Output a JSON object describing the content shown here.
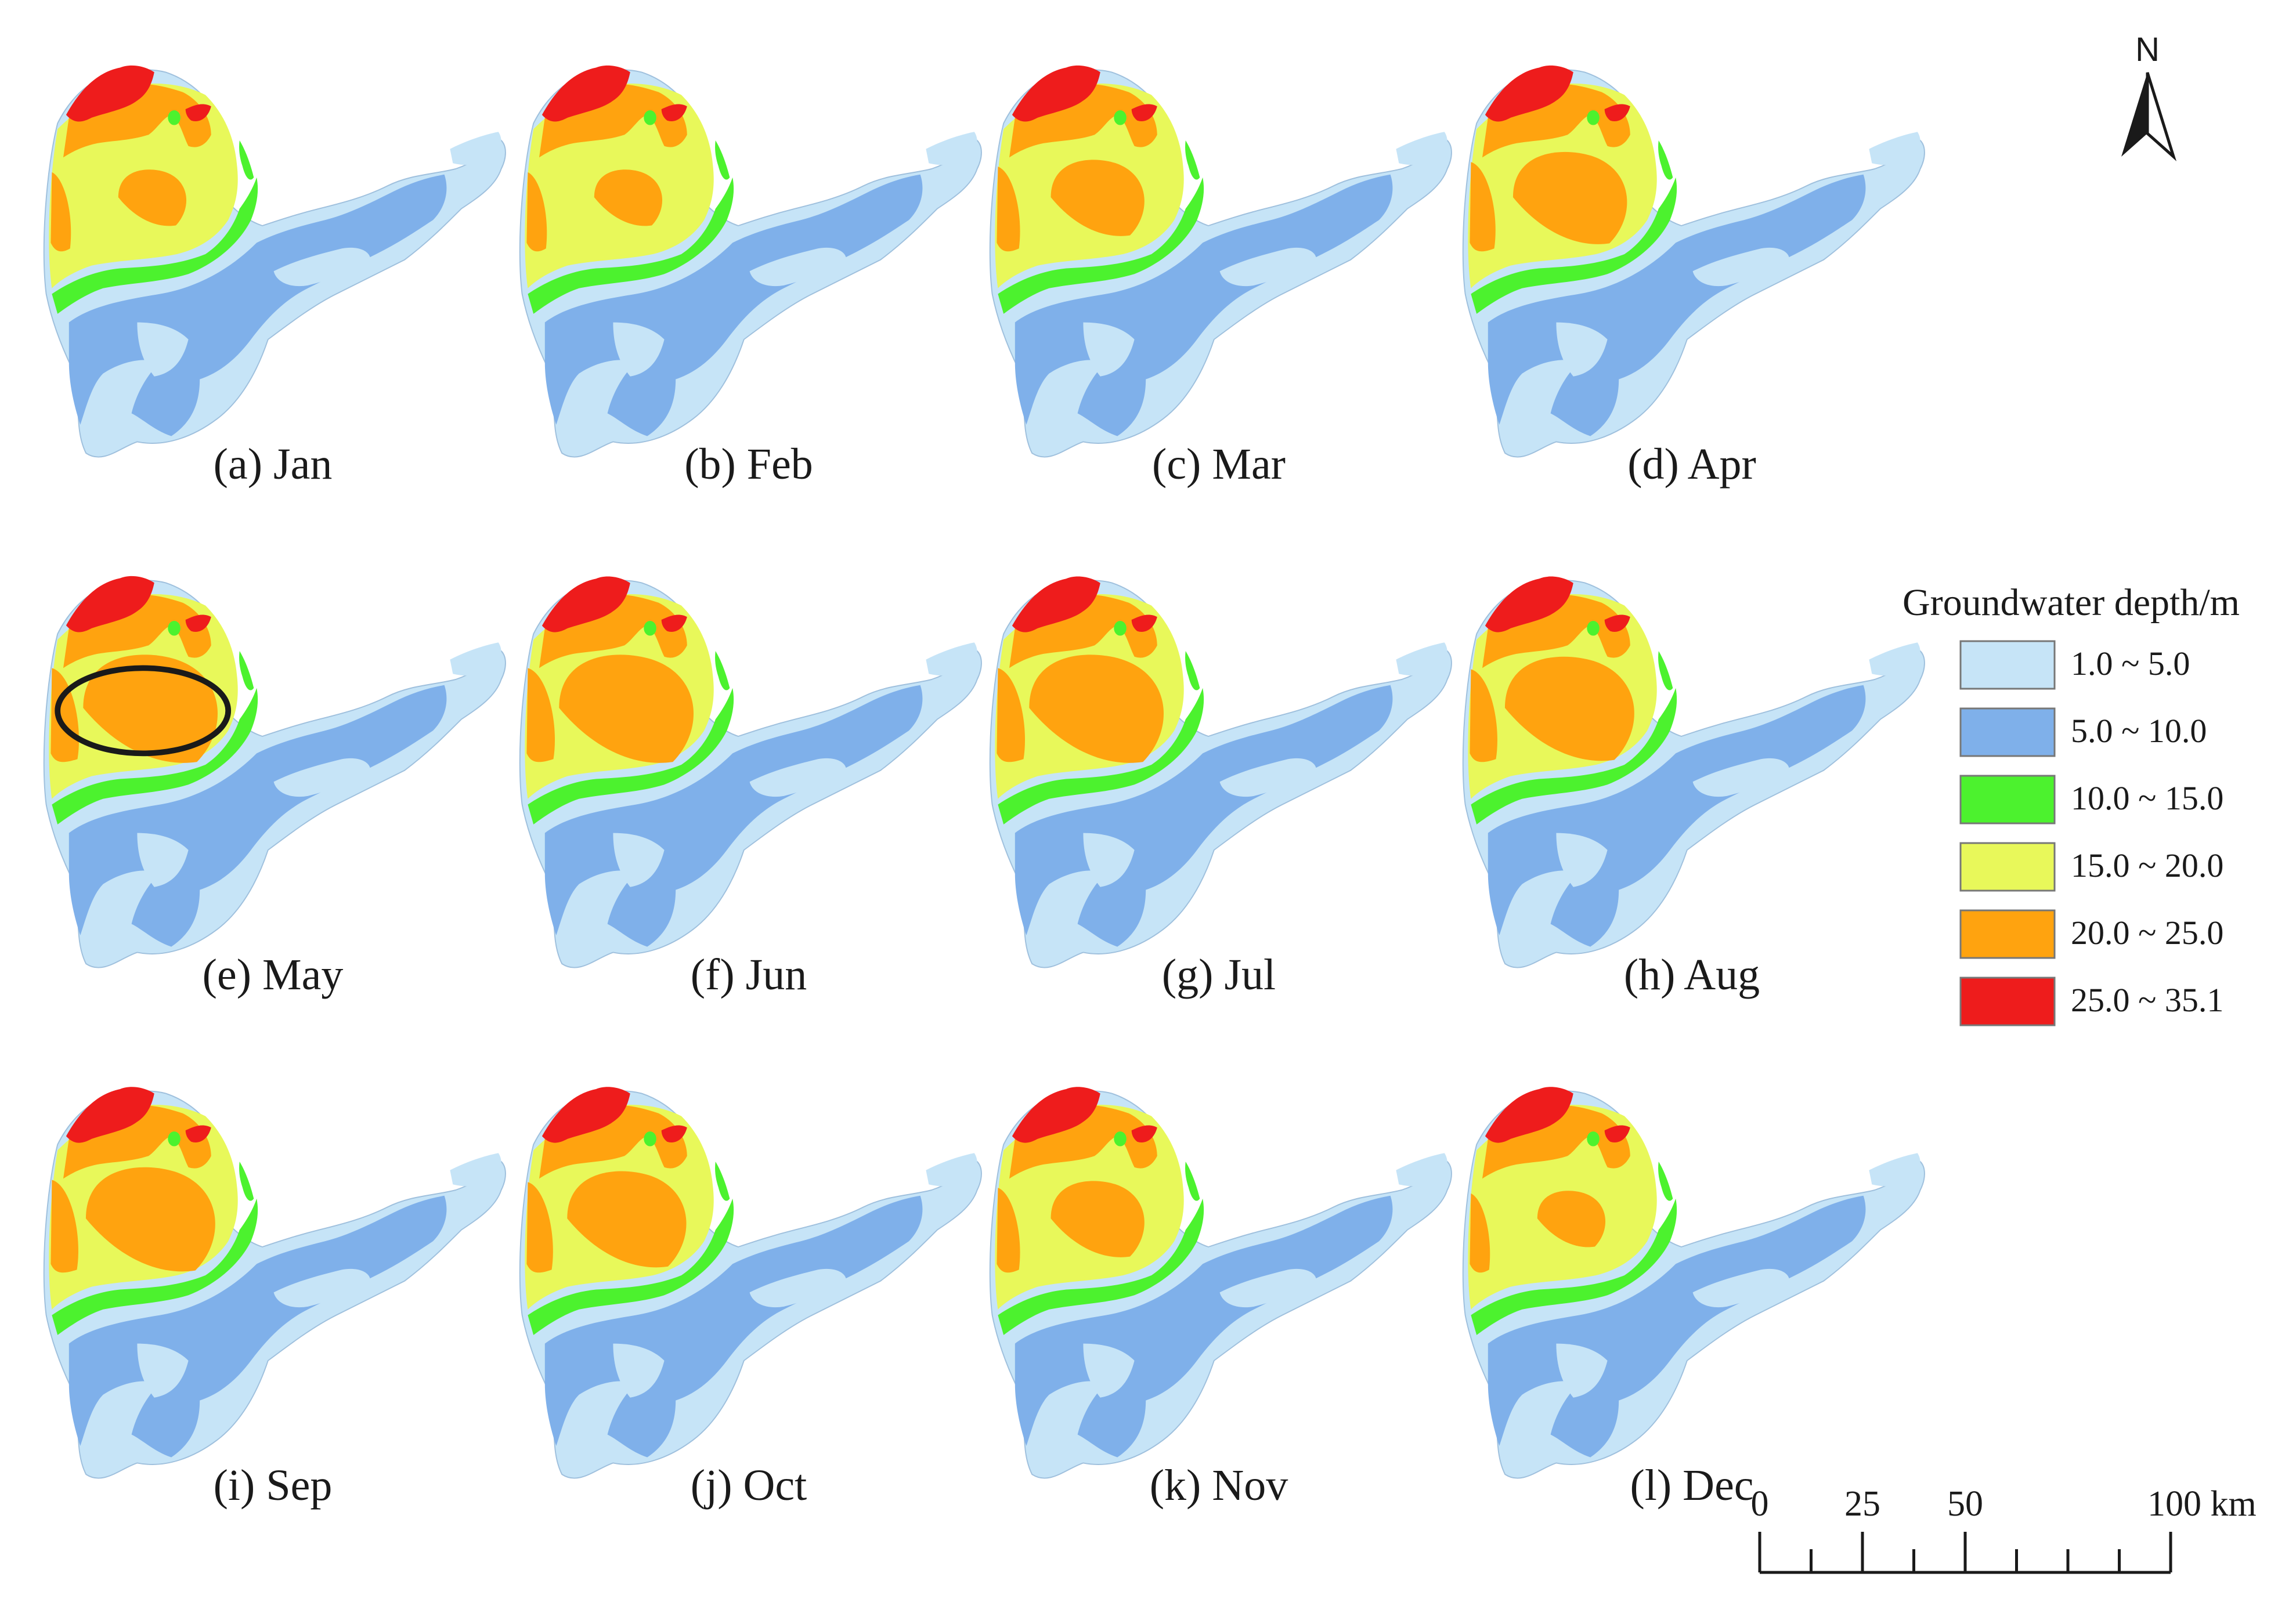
{
  "colors": {
    "class_1": "#c6e4f7",
    "class_2": "#7fb0ea",
    "class_3": "#4cf22e",
    "class_4": "#e8f85a",
    "class_5": "#ffa30f",
    "class_6": "#ee1c1c",
    "outline": "#8aa6c8",
    "ink": "#1a1a1a"
  },
  "north_arrow": {
    "label": "N"
  },
  "legend": {
    "title": "Groundwater depth/m",
    "classes": [
      {
        "label": "1.0 ~ 5.0",
        "color": "#c6e4f7"
      },
      {
        "label": "5.0 ~ 10.0",
        "color": "#7fb0ea"
      },
      {
        "label": "10.0 ~ 15.0",
        "color": "#4cf22e"
      },
      {
        "label": "15.0 ~ 20.0",
        "color": "#e8f85a"
      },
      {
        "label": "20.0 ~ 25.0",
        "color": "#ffa30f"
      },
      {
        "label": "25.0 ~ 35.1",
        "color": "#ee1c1c"
      }
    ]
  },
  "scale_bar": {
    "labels": [
      "0",
      "25",
      "50",
      "100 km"
    ]
  },
  "panels": [
    {
      "label": "(a) Jan",
      "deep_zone": 0.35,
      "red_zone": 1.0
    },
    {
      "label": "(b) Feb",
      "deep_zone": 0.35,
      "red_zone": 1.0
    },
    {
      "label": "(c) Mar",
      "deep_zone": 0.6,
      "red_zone": 1.0
    },
    {
      "label": "(d) Apr",
      "deep_zone": 0.8,
      "red_zone": 1.0
    },
    {
      "label": "(e) May",
      "deep_zone": 1.0,
      "red_zone": 1.0,
      "highlight": true
    },
    {
      "label": "(f) Jun",
      "deep_zone": 1.0,
      "red_zone": 0.9
    },
    {
      "label": "(g) Jul",
      "deep_zone": 1.0,
      "red_zone": 0.9
    },
    {
      "label": "(h) Aug",
      "deep_zone": 0.95,
      "red_zone": 0.9
    },
    {
      "label": "(i) Sep",
      "deep_zone": 0.95,
      "red_zone": 0.95
    },
    {
      "label": "(j) Oct",
      "deep_zone": 0.85,
      "red_zone": 0.95
    },
    {
      "label": "(k) Nov",
      "deep_zone": 0.6,
      "red_zone": 0.95
    },
    {
      "label": "(l) Dec",
      "deep_zone": 0.35,
      "red_zone": 0.95
    }
  ]
}
